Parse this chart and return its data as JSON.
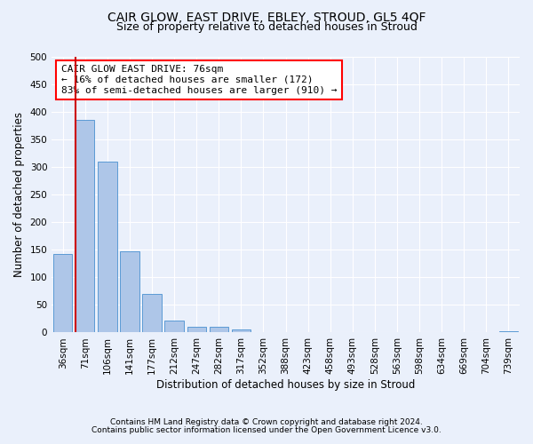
{
  "title": "CAIR GLOW, EAST DRIVE, EBLEY, STROUD, GL5 4QF",
  "subtitle": "Size of property relative to detached houses in Stroud",
  "xlabel": "Distribution of detached houses by size in Stroud",
  "ylabel": "Number of detached properties",
  "categories": [
    "36sqm",
    "71sqm",
    "106sqm",
    "141sqm",
    "177sqm",
    "212sqm",
    "247sqm",
    "282sqm",
    "317sqm",
    "352sqm",
    "388sqm",
    "423sqm",
    "458sqm",
    "493sqm",
    "528sqm",
    "563sqm",
    "598sqm",
    "634sqm",
    "669sqm",
    "704sqm",
    "739sqm"
  ],
  "values": [
    143,
    385,
    310,
    147,
    70,
    22,
    10,
    10,
    5,
    1,
    0,
    0,
    0,
    0,
    0,
    0,
    0,
    0,
    0,
    0,
    3
  ],
  "bar_color": "#aec6e8",
  "bar_edge_color": "#5b9bd5",
  "vline_x_index": 1,
  "vline_color": "#cc0000",
  "ylim": [
    0,
    500
  ],
  "yticks": [
    0,
    50,
    100,
    150,
    200,
    250,
    300,
    350,
    400,
    450,
    500
  ],
  "annotation_title": "CAIR GLOW EAST DRIVE: 76sqm",
  "annotation_line1": "← 16% of detached houses are smaller (172)",
  "annotation_line2": "83% of semi-detached houses are larger (910) →",
  "footer1": "Contains HM Land Registry data © Crown copyright and database right 2024.",
  "footer2": "Contains public sector information licensed under the Open Government Licence v3.0.",
  "bg_color": "#eaf0fb",
  "plot_bg_color": "#eaf0fb",
  "title_fontsize": 10,
  "subtitle_fontsize": 9,
  "xlabel_fontsize": 8.5,
  "ylabel_fontsize": 8.5,
  "tick_fontsize": 7.5,
  "footer_fontsize": 6.5,
  "annotation_fontsize": 8
}
